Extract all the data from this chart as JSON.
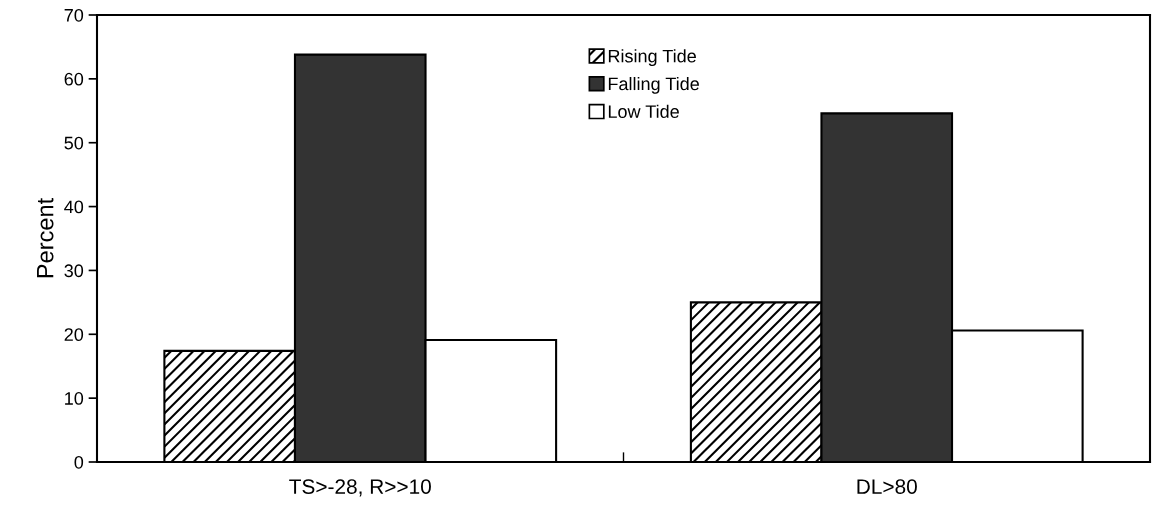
{
  "chart_data": {
    "type": "bar",
    "ylabel": "Percent",
    "categories": [
      "TS>-28, R>>10",
      "DL>80"
    ],
    "series": [
      {
        "name": "Rising Tide",
        "color": "#ffffff",
        "values": [
          17.4,
          25.0
        ]
      },
      {
        "name": "Falling Tide",
        "color": "#333333",
        "values": [
          63.8,
          54.6
        ]
      },
      {
        "name": "Low Tide",
        "color": "#ffffff",
        "values": [
          19.1,
          20.6
        ]
      }
    ],
    "ylim": [
      0,
      70
    ],
    "yticks": [
      0,
      10,
      20,
      30,
      40,
      50,
      60,
      70
    ],
    "grid": false,
    "legend": "top"
  }
}
